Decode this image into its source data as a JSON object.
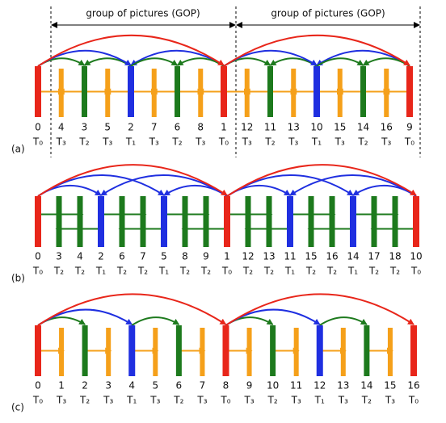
{
  "gop_labels": [
    "group of pictures (GOP)",
    "group of pictures (GOP)"
  ],
  "panels": [
    {
      "label": "(a)",
      "frames": [
        {
          "number": 0,
          "layer": "T₀"
        },
        {
          "number": 4,
          "layer": "T₃"
        },
        {
          "number": 3,
          "layer": "T₂"
        },
        {
          "number": 5,
          "layer": "T₃"
        },
        {
          "number": 2,
          "layer": "T₁"
        },
        {
          "number": 7,
          "layer": "T₃"
        },
        {
          "number": 6,
          "layer": "T₂"
        },
        {
          "number": 8,
          "layer": "T₃"
        },
        {
          "number": 1,
          "layer": "T₀"
        },
        {
          "number": 12,
          "layer": "T₃"
        },
        {
          "number": 11,
          "layer": "T₂"
        },
        {
          "number": 13,
          "layer": "T₃"
        },
        {
          "number": 10,
          "layer": "T₁"
        },
        {
          "number": 15,
          "layer": "T₃"
        },
        {
          "number": 14,
          "layer": "T₂"
        },
        {
          "number": 16,
          "layer": "T₃"
        },
        {
          "number": 9,
          "layer": "T₀"
        }
      ]
    },
    {
      "label": "(b)",
      "frames": [
        {
          "number": 0,
          "layer": "T₀"
        },
        {
          "number": 3,
          "layer": "T₂"
        },
        {
          "number": 4,
          "layer": "T₂"
        },
        {
          "number": 2,
          "layer": "T₁"
        },
        {
          "number": 6,
          "layer": "T₂"
        },
        {
          "number": 7,
          "layer": "T₂"
        },
        {
          "number": 5,
          "layer": "T₁"
        },
        {
          "number": 8,
          "layer": "T₂"
        },
        {
          "number": 9,
          "layer": "T₂"
        },
        {
          "number": 1,
          "layer": "T₀"
        },
        {
          "number": 12,
          "layer": "T₂"
        },
        {
          "number": 13,
          "layer": "T₂"
        },
        {
          "number": 11,
          "layer": "T₁"
        },
        {
          "number": 15,
          "layer": "T₂"
        },
        {
          "number": 16,
          "layer": "T₂"
        },
        {
          "number": 14,
          "layer": "T₁"
        },
        {
          "number": 17,
          "layer": "T₂"
        },
        {
          "number": 18,
          "layer": "T₂"
        },
        {
          "number": 10,
          "layer": "T₀"
        }
      ]
    },
    {
      "label": "(c)",
      "frames": [
        {
          "number": 0,
          "layer": "T₀"
        },
        {
          "number": 1,
          "layer": "T₃"
        },
        {
          "number": 2,
          "layer": "T₂"
        },
        {
          "number": 3,
          "layer": "T₃"
        },
        {
          "number": 4,
          "layer": "T₁"
        },
        {
          "number": 5,
          "layer": "T₃"
        },
        {
          "number": 6,
          "layer": "T₂"
        },
        {
          "number": 7,
          "layer": "T₃"
        },
        {
          "number": 8,
          "layer": "T₀"
        },
        {
          "number": 9,
          "layer": "T₃"
        },
        {
          "number": 10,
          "layer": "T₂"
        },
        {
          "number": 11,
          "layer": "T₃"
        },
        {
          "number": 12,
          "layer": "T₁"
        },
        {
          "number": 13,
          "layer": "T₃"
        },
        {
          "number": 14,
          "layer": "T₂"
        },
        {
          "number": 15,
          "layer": "T₃"
        },
        {
          "number": 16,
          "layer": "T₀"
        }
      ]
    }
  ]
}
